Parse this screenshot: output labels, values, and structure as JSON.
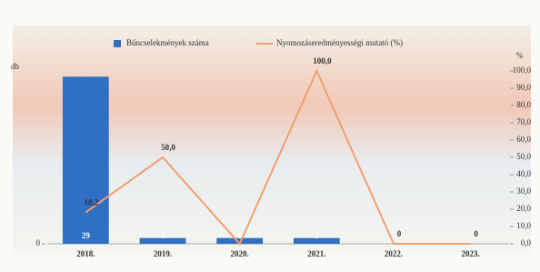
{
  "chart_data": {
    "type": "bar-line",
    "y_label": "db",
    "y2_label": "%",
    "categories": [
      "2018.",
      "2019.",
      "2020.",
      "2021.",
      "2022.",
      "2023."
    ],
    "series": [
      {
        "name": "Bűncselekmények száma",
        "color": "#2f6fc4",
        "type": "bar",
        "values": [
          29,
          1,
          1,
          1,
          null,
          null
        ]
      },
      {
        "name": "Nyomozáseredményességi mutató (%)",
        "color": "#f0a070",
        "type": "line",
        "axis": "y2",
        "values": [
          18.2,
          50.0,
          0,
          100.0,
          0,
          0
        ],
        "value_labels": [
          "18,2",
          "50,0",
          null,
          "100,0",
          "0",
          "0"
        ]
      }
    ],
    "ylim": [
      0,
      30
    ],
    "yticks": [
      0
    ],
    "y2lim": [
      0,
      100
    ],
    "y2ticks": [
      {
        "value": 0,
        "label": "0,0"
      },
      {
        "value": 10,
        "label": "10,0"
      },
      {
        "value": 20,
        "label": "20,0"
      },
      {
        "value": 30,
        "label": "30,0"
      },
      {
        "value": 40,
        "label": "40,0"
      },
      {
        "value": 50,
        "label": "50,0"
      },
      {
        "value": 60,
        "label": "60,0"
      },
      {
        "value": 70,
        "label": "70,0"
      },
      {
        "value": 80,
        "label": "80,0"
      },
      {
        "value": 90,
        "label": "90,0"
      },
      {
        "value": 100,
        "label": "100,0"
      }
    ]
  }
}
